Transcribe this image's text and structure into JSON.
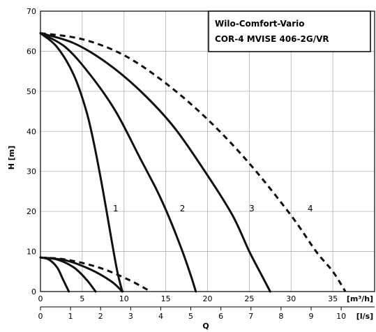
{
  "chart_data": {
    "type": "line",
    "title_lines": [
      "Wilo-Comfort-Vario",
      "COR-4 MVISE 406-2G/VR"
    ],
    "ylabel": "H [m]",
    "xlabel": "Q",
    "x_unit_primary": "[m³/h]",
    "x_unit_secondary": "[l/s]",
    "xlim": [
      0,
      40
    ],
    "ylim": [
      0,
      70
    ],
    "grid": true,
    "y_ticks": [
      0,
      10,
      20,
      30,
      40,
      50,
      60,
      70
    ],
    "x_ticks_primary": [
      0,
      5,
      10,
      15,
      20,
      25,
      30,
      35
    ],
    "x_ticks_secondary": [
      "0",
      "1",
      "2",
      "3",
      "4",
      "5",
      "6",
      "7",
      "8",
      "9",
      "10"
    ],
    "series": [
      {
        "name": "1",
        "style": "solid",
        "x": [
          0,
          2,
          4,
          5.5,
          6.5,
          7.5,
          8.5,
          9.2,
          9.8
        ],
        "y": [
          64.5,
          61,
          54,
          45,
          36,
          25,
          13,
          5,
          0
        ]
      },
      {
        "name": "2",
        "style": "solid",
        "x": [
          0,
          3,
          6,
          9,
          12,
          14,
          15.5,
          17,
          18,
          18.6
        ],
        "y": [
          64.5,
          61,
          54,
          45,
          33,
          25,
          18,
          10,
          4,
          0
        ]
      },
      {
        "name": "3",
        "style": "solid",
        "x": [
          0,
          4,
          8,
          12,
          16,
          20,
          23,
          25,
          26.5,
          27.5
        ],
        "y": [
          64.5,
          62,
          57,
          50,
          41,
          29,
          19,
          10,
          4,
          0
        ]
      },
      {
        "name": "4",
        "style": "dashed",
        "x": [
          0,
          5,
          10,
          15,
          20,
          25,
          30,
          33,
          35,
          36.5
        ],
        "y": [
          64.5,
          63,
          59,
          52,
          43,
          32,
          19,
          10,
          5,
          0
        ]
      },
      {
        "name": "",
        "style": "solid",
        "x": [
          0,
          1,
          2,
          2.7,
          3.4
        ],
        "y": [
          8.5,
          8,
          6,
          3,
          0
        ]
      },
      {
        "name": "",
        "style": "solid",
        "x": [
          0,
          2,
          4,
          5.5,
          6.6
        ],
        "y": [
          8.5,
          8,
          6,
          3,
          0
        ]
      },
      {
        "name": "",
        "style": "solid",
        "x": [
          0,
          3,
          6,
          8.5,
          9.8
        ],
        "y": [
          8.5,
          7.8,
          5.5,
          2.5,
          0
        ]
      },
      {
        "name": "",
        "style": "dashed",
        "x": [
          0,
          3,
          7,
          10.5,
          13.2
        ],
        "y": [
          8.5,
          8,
          6,
          3,
          0
        ]
      }
    ],
    "curve_label_positions": [
      {
        "text": "1",
        "x": 9.0,
        "y": 20
      },
      {
        "text": "2",
        "x": 17.0,
        "y": 20
      },
      {
        "text": "3",
        "x": 25.3,
        "y": 20
      },
      {
        "text": "4",
        "x": 32.3,
        "y": 20
      }
    ]
  }
}
